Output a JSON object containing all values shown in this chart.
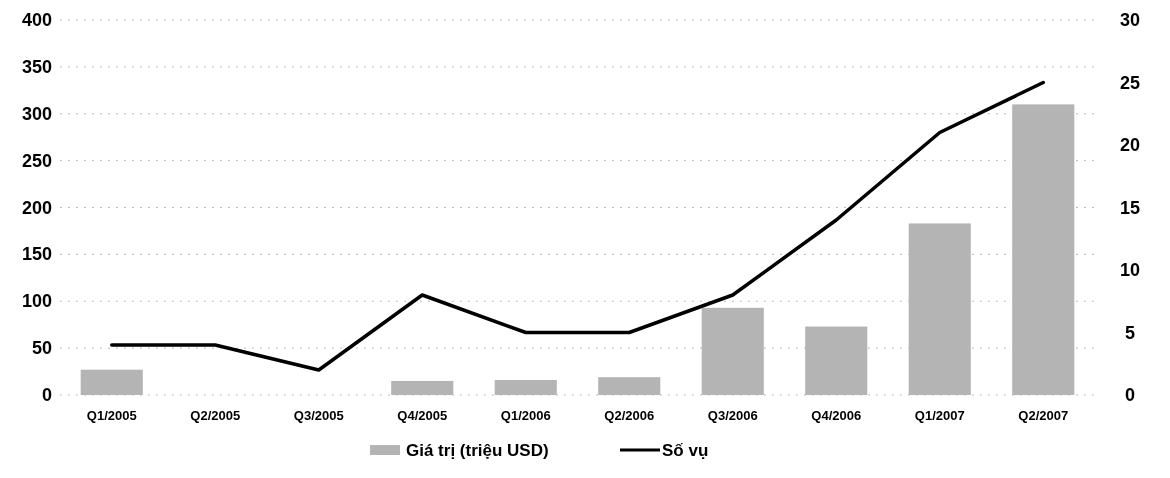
{
  "chart_data": {
    "type": "bar",
    "categories": [
      "Q1/2005",
      "Q2/2005",
      "Q3/2005",
      "Q4/2005",
      "Q1/2006",
      "Q2/2006",
      "Q3/2006",
      "Q4/2006",
      "Q1/2007",
      "Q2/2007"
    ],
    "series": [
      {
        "name": "Giá trị (triệu USD)",
        "color": "#b4b4b4",
        "values": [
          27,
          0,
          0,
          15,
          16,
          19,
          93,
          73,
          183,
          310
        ]
      },
      {
        "name": "Số vụ",
        "type": "line",
        "axis": "y2",
        "color": "#000000",
        "values": [
          4,
          4,
          2,
          8,
          5,
          5,
          8,
          14,
          21,
          25
        ]
      }
    ],
    "ylim": [
      0,
      400
    ],
    "yticks": [
      0,
      50,
      100,
      150,
      200,
      250,
      300,
      350,
      400
    ],
    "y2lim": [
      0,
      30
    ],
    "y2ticks": [
      0,
      5,
      10,
      15,
      20,
      25,
      30
    ],
    "grid": "y",
    "legend": "bottom",
    "line_style": "solid",
    "marker": "none"
  }
}
